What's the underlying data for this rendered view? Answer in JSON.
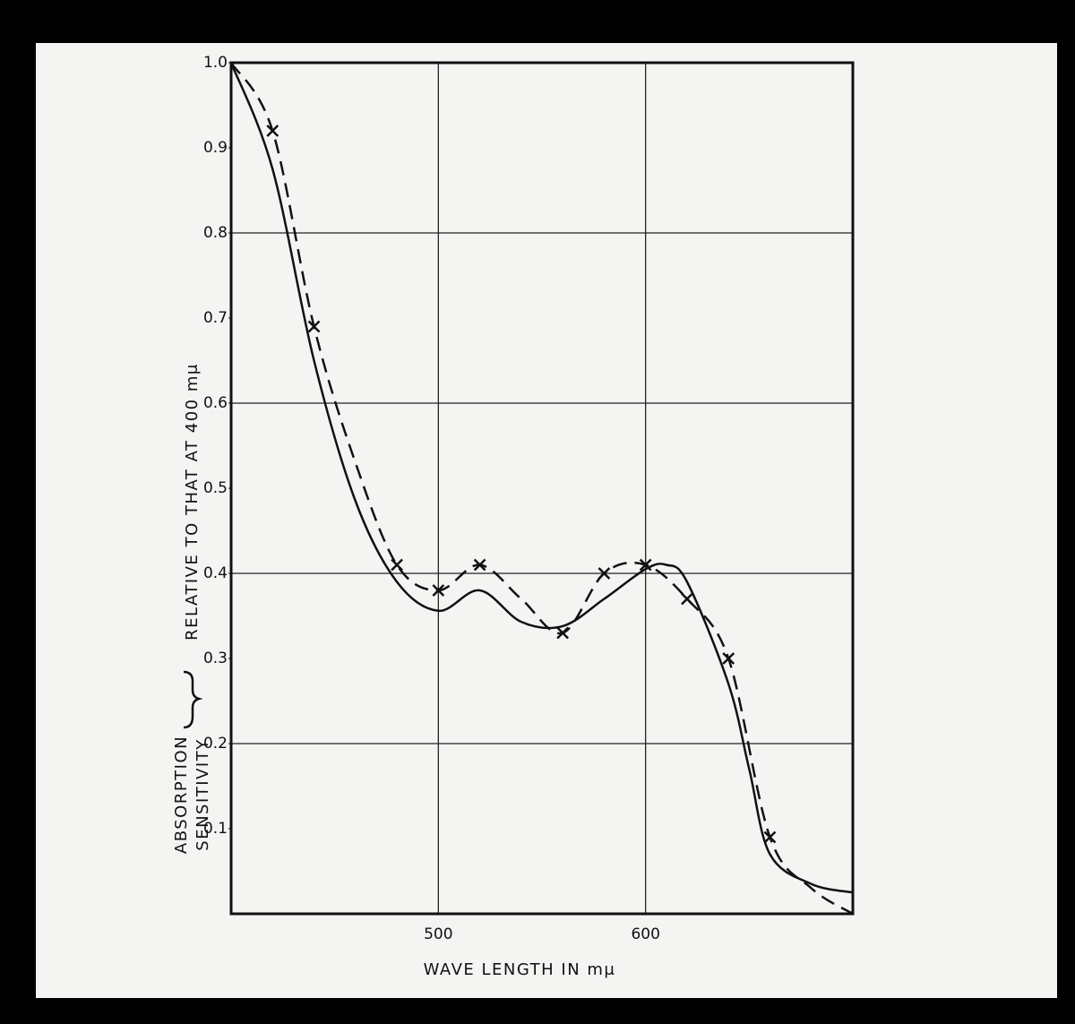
{
  "chart_data": {
    "type": "line",
    "xlabel": "WAVE LENGTH IN mμ",
    "ylabel_parts": [
      "ABSORPTION",
      "SENSITIVITY"
    ],
    "ylabel": "RELATIVE TO THAT AT 400 mμ",
    "xlim": [
      400,
      700
    ],
    "xticks": [
      500,
      600
    ],
    "ylim": [
      0,
      1
    ],
    "yticks": [
      0.1,
      0.2,
      0.3,
      0.4,
      0.5,
      0.6,
      0.7,
      0.8,
      0.9,
      {
        "value": 1,
        "label": "1.0"
      }
    ],
    "ygrid": [
      0.2,
      0.4,
      0.6,
      0.8
    ],
    "grid": true,
    "series": [
      {
        "color": "#111",
        "style": "solid",
        "x": [
          400,
          420,
          440,
          460,
          480,
          500,
          520,
          540,
          560,
          580,
          600,
          610,
          620,
          640,
          650,
          660,
          680,
          700
        ],
        "values": [
          1.0,
          0.875,
          0.65,
          0.485,
          0.39,
          0.356,
          0.38,
          0.343,
          0.338,
          0.37,
          0.405,
          0.41,
          0.39,
          0.27,
          0.17,
          0.07,
          0.035,
          0.025
        ]
      },
      {
        "color": "#111",
        "style": "dashed",
        "x": [
          400,
          420,
          440,
          460,
          480,
          500,
          520,
          540,
          560,
          580,
          600,
          620,
          640,
          660,
          680,
          700
        ],
        "values": [
          1.0,
          0.92,
          0.69,
          0.53,
          0.41,
          0.38,
          0.41,
          0.37,
          0.33,
          0.4,
          0.41,
          0.37,
          0.3,
          0.09,
          0.03,
          0.0
        ]
      },
      {
        "color": "#111",
        "style": "x-marker",
        "x": [
          420,
          440,
          480,
          500,
          520,
          560,
          580,
          600,
          620,
          640,
          660
        ],
        "values": [
          0.92,
          0.69,
          0.41,
          0.38,
          0.41,
          0.33,
          0.4,
          0.41,
          0.37,
          0.3,
          0.09
        ]
      }
    ]
  }
}
